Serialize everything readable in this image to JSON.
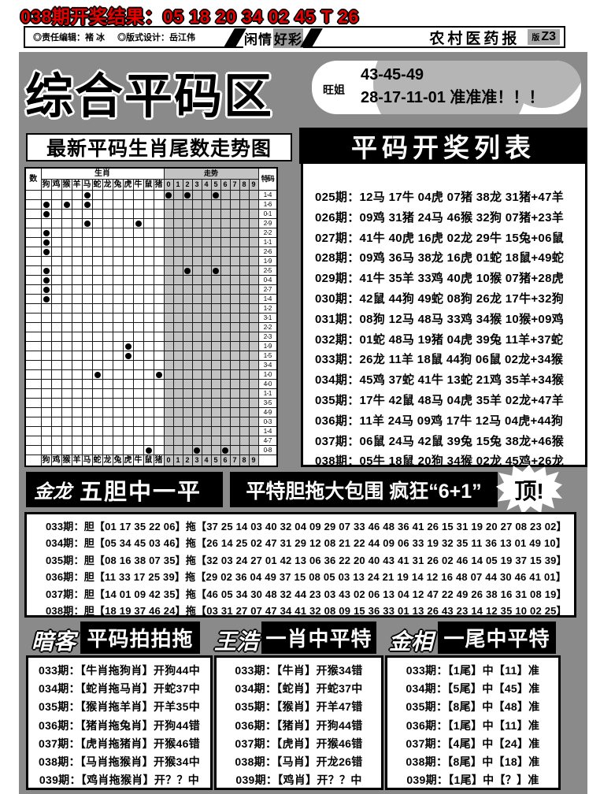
{
  "colors": {
    "accent_red": "#e60000",
    "sheet_gray": "#8a8a8a",
    "trend_cell_gray": "#c3c3c3"
  },
  "page": {
    "result_line": "038期开奖结果：05 18 20 34 02 45 T 26",
    "masthead": {
      "editor": "◎责任编辑：褚 冰",
      "designer": "◎版式设计：岳江伟",
      "logo_left": "闲情",
      "logo_right": "好彩",
      "paper_name": "农村医药报",
      "edition_prefix": "版",
      "edition": "Z3"
    },
    "title": "综合平码区",
    "tip": {
      "author": "旺姐",
      "line1": "43-45-49",
      "line2": "28-17-11-01 准准准！！！"
    },
    "chart_title": "最新平码生肖尾数走势图",
    "list_title": "平码开奖列表"
  },
  "trend_chart": {
    "corner_left": "数",
    "group_zodiac": "生肖",
    "group_trend": "走势",
    "corner_right": "特码",
    "zodiac": [
      "狗",
      "鸡",
      "猴",
      "羊",
      "马",
      "蛇",
      "龙",
      "兔",
      "虎",
      "牛",
      "鼠",
      "猪"
    ],
    "digits": [
      "0",
      "1",
      "2",
      "3",
      "4",
      "5",
      "6",
      "7",
      "8",
      "9"
    ],
    "rows": [
      {
        "z": [
          4
        ],
        "d": [
          0,
          2,
          5
        ],
        "label": "1-4"
      },
      {
        "z": [
          0,
          2,
          4
        ],
        "d": [],
        "label": "1-6"
      },
      {
        "z": [
          0
        ],
        "d": [],
        "label": "0-1"
      },
      {
        "z": [
          4,
          9
        ],
        "d": [],
        "label": "2-9"
      },
      {
        "z": [
          0
        ],
        "d": [],
        "label": "2-2"
      },
      {
        "z": [
          0
        ],
        "d": [],
        "label": "1-1"
      },
      {
        "z": [
          0
        ],
        "d": [],
        "label": "2-6"
      },
      {
        "z": [],
        "d": [],
        "label": "1-9"
      },
      {
        "z": [
          0
        ],
        "d": [
          2,
          5
        ],
        "label": "2-5"
      },
      {
        "z": [
          0
        ],
        "d": [],
        "label": "0-4"
      },
      {
        "z": [
          0
        ],
        "d": [],
        "label": "2-7"
      },
      {
        "z": [
          0
        ],
        "d": [],
        "label": "1-4"
      },
      {
        "z": [],
        "d": [],
        "label": "1-2"
      },
      {
        "z": [],
        "d": [],
        "label": "3-1"
      },
      {
        "z": [],
        "d": [],
        "label": "2-2"
      },
      {
        "z": [],
        "d": [],
        "label": "2-3"
      },
      {
        "z": [
          8
        ],
        "d": [],
        "label": "1-9"
      },
      {
        "z": [
          8
        ],
        "d": [],
        "label": "1-5"
      },
      {
        "z": [],
        "d": [],
        "label": "3-4"
      },
      {
        "z": [
          5,
          11
        ],
        "d": [],
        "label": "1-0"
      },
      {
        "z": [],
        "d": [],
        "label": "4-0"
      },
      {
        "z": [],
        "d": [],
        "label": "1-1"
      },
      {
        "z": [],
        "d": [],
        "label": "3-5"
      },
      {
        "z": [],
        "d": [],
        "label": "4-9"
      },
      {
        "z": [],
        "d": [],
        "label": "0-3"
      },
      {
        "z": [],
        "d": [],
        "label": "1-4"
      },
      {
        "z": [],
        "d": [],
        "label": "4-7"
      },
      {
        "z": [
          10
        ],
        "d": [
          3,
          6
        ],
        "label": "0-8"
      }
    ]
  },
  "results": {
    "rows": [
      "025期：12马 17牛 04虎 07猪 38龙 31猪+47羊",
      "026期：09鸡 31猪 24马 46猴 32狗 07猪+23羊",
      "027期：41牛 40虎 16虎 02龙 29牛 15兔+06鼠",
      "028期：09鸡 36马 38龙 16虎 01蛇 18鼠+49蛇",
      "029期：41牛 35羊 33鸡 40虎 10猴 07猪+28虎",
      "030期：42鼠 44狗 49蛇 08狗 26龙 17牛+32狗",
      "031期：08狗 12马 48马 33鸡 34猴 10猴+09鸡",
      "032期：01蛇 48马 19猪 04虎 39兔 11羊+37蛇",
      "033期：26龙 11羊 18鼠 44狗 06鼠 02龙+34猴",
      "034期：45鸡 37蛇 41牛 13蛇 21鸡 35羊+34猴",
      "035期：17牛 42鼠 48马 04虎 35羊 02龙+47羊",
      "036期：11羊 24马 09鸡 17牛 12马 04虎+44狗",
      "037期：06鼠 24马 42鼠 39兔 15兔 38龙+46猴",
      "038期：05牛 18鼠 20狗 34猴 02龙 45鸡+26龙"
    ]
  },
  "mid_banner": {
    "author": "金龙",
    "slogan": "五胆中一平",
    "slogan2": "平特胆拖大包围 疯狂“6+1”",
    "burst": "顶!"
  },
  "dantuo": {
    "dan_label": "胆",
    "tuo_label": "拖",
    "rows": [
      {
        "period": "033期",
        "dan": "01 17 35 22 06",
        "tuo": "37 25 14 03 40 32 04 09 29 07 33 46 48 36 41 26 15 31 19 20 27 08 23 02"
      },
      {
        "period": "034期",
        "dan": "05 34 45 03 46",
        "tuo": "26 14 25 02 47 31 29 12 08 21 22 44 09 06 33 19 32 35 11 36 13 01 49 10"
      },
      {
        "period": "035期",
        "dan": "08 16 38 07 35",
        "tuo": "32 03 24 27 01 42 13 06 36 22 20 40 43 41 31 26 02 46 14 05 19 37 15 39"
      },
      {
        "period": "036期",
        "dan": "11 33 17 25 39",
        "tuo": "29 02 36 04 49 37 15 08 05 03 13 24 21 19 14 12 16 48 07 44 30 46 41 01"
      },
      {
        "period": "037期",
        "dan": "14 01 09 42 35",
        "tuo": "46 05 34 30 48 32 44 23 03 43 02 06 13 04 12 47 22 49 26 38 16 31 08 19"
      },
      {
        "period": "038期",
        "dan": "18 19 37 46 24",
        "tuo": "03 31 27 07 47 34 41 32 08 09 15 36 33 01 13 26 43 23 14 12 35 10 02 25"
      }
    ]
  },
  "bottom": {
    "sections": [
      {
        "author": "暗客",
        "title": "平码拍拍拖",
        "rows": [
          "033期：【牛肖拖狗肖】开狗44中",
          "034期：【蛇肖拖马肖】开蛇37中",
          "035期：【猴肖拖羊肖】开羊35中",
          "036期：【猪肖拖兔肖】开狗44错",
          "037期：【虎肖拖猪肖】开猴46错",
          "038期：【马肖拖猴肖】开猴34中",
          "039期：【鸡肖拖猴肖】开？？中"
        ]
      },
      {
        "author": "王浩",
        "title": "一肖中平特",
        "rows": [
          "033期：【牛肖】开猴34错",
          "034期：【蛇肖】开蛇37中",
          "035期：【猴肖】开羊47错",
          "036期：【猪肖】开狗44错",
          "037期：【虎肖】开猴46错",
          "038期：【马肖】开龙26错",
          "039期：【鸡肖】开？？中"
        ]
      },
      {
        "author": "金相",
        "title": "一尾中平特",
        "rows": [
          "033期：【1尾】中【11】准",
          "034期：【5尾】中【45】准",
          "035期：【8尾】中【48】准",
          "036期：【1尾】中【11】准",
          "037期：【4尾】中【24】准",
          "038期：【8尾】中【18】准",
          "039期：【1尾】中【？】准"
        ]
      }
    ]
  }
}
